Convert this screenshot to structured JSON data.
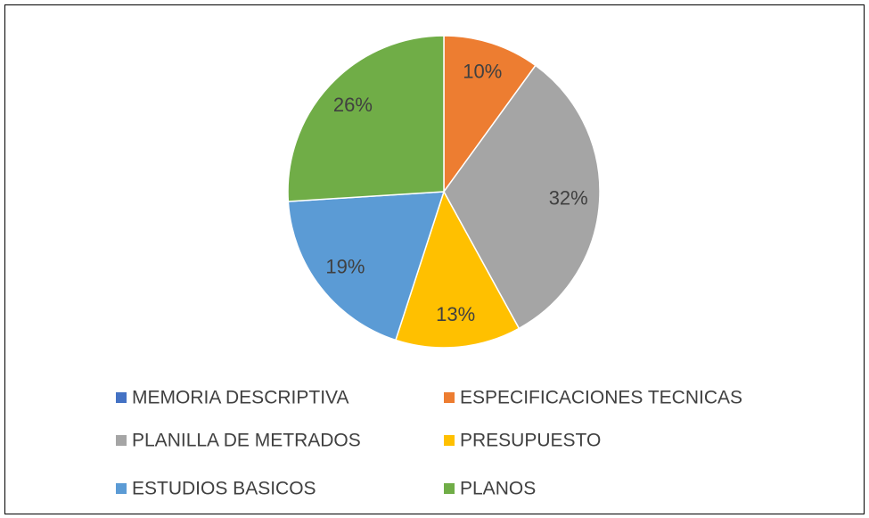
{
  "chart_data": {
    "type": "pie",
    "categories": [
      "MEMORIA DESCRIPTIVA",
      "ESPECIFICACIONES TECNICAS",
      "PLANILLA DE METRADOS",
      "PRESUPUESTO",
      "ESTUDIOS BASICOS",
      "PLANOS"
    ],
    "values": [
      0,
      10,
      32,
      13,
      19,
      26
    ],
    "value_labels": [
      null,
      "10%",
      "32%",
      "13%",
      "19%",
      "26%"
    ],
    "colors": [
      "#4472c4",
      "#ed7d31",
      "#a5a5a5",
      "#ffc000",
      "#5b9bd5",
      "#70ad47"
    ],
    "legend": "bottom"
  }
}
